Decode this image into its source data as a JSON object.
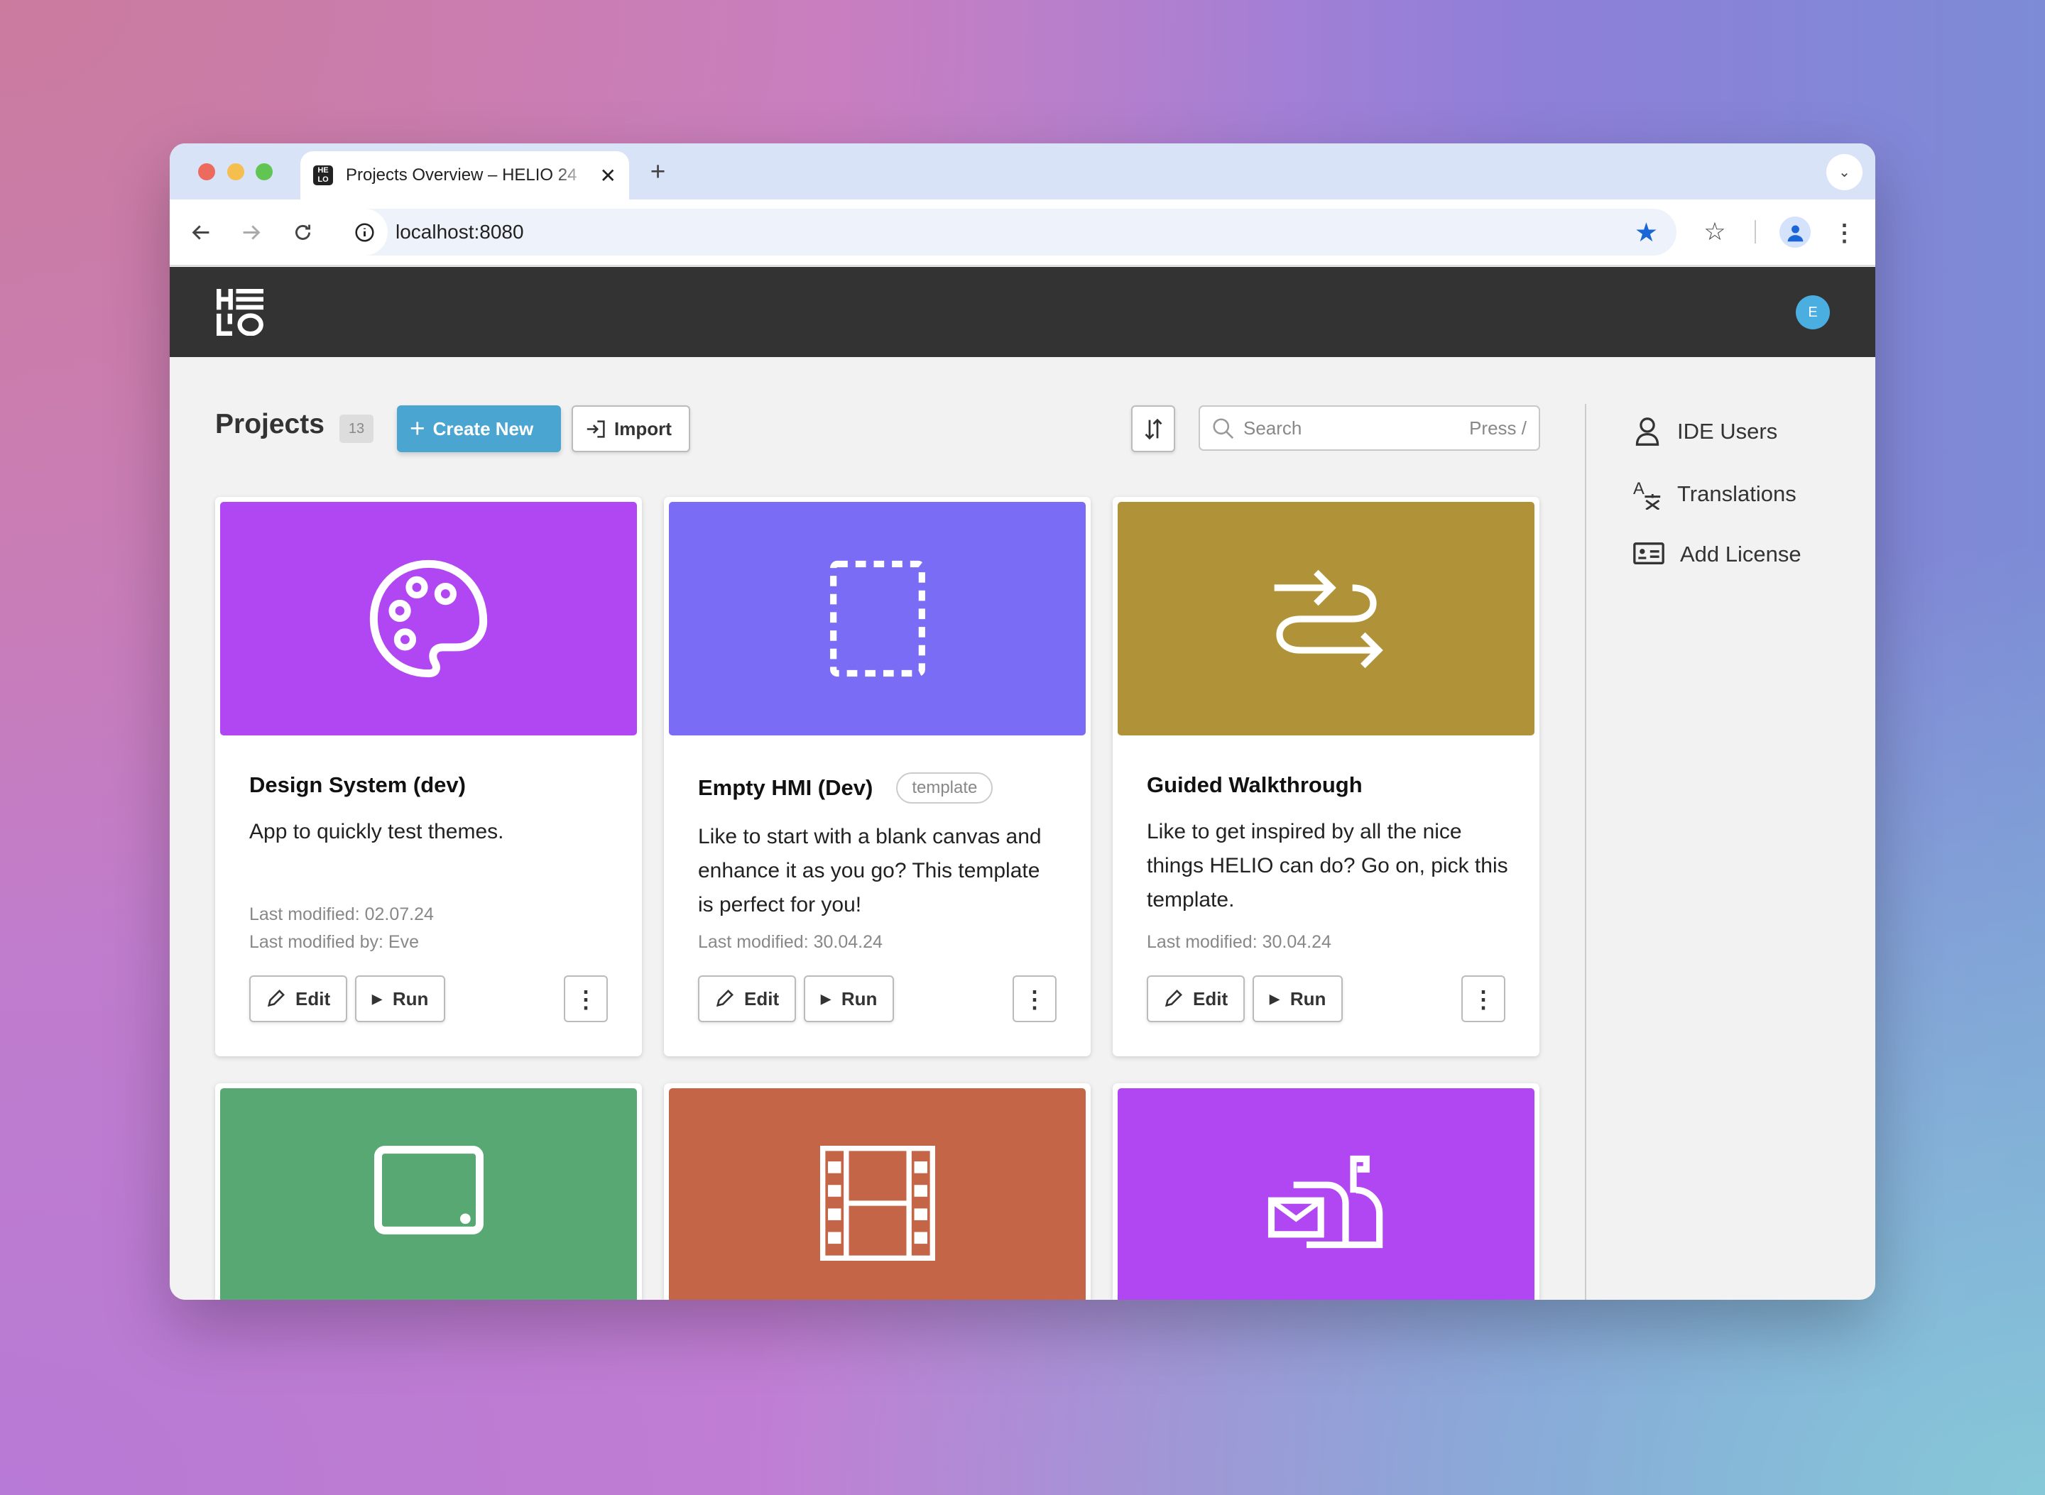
{
  "browser": {
    "tab_title": "Projects Overview – HELIO 24",
    "url": "localhost:8080"
  },
  "app": {
    "logo": "HELIO",
    "avatar_initial": "E"
  },
  "main": {
    "title": "Projects",
    "count": "13",
    "create_label": "Create New",
    "import_label": "Import",
    "search_placeholder": "Search",
    "search_hint": "Press /"
  },
  "sidebar": {
    "items": [
      {
        "label": "IDE Users",
        "icon": "user-icon"
      },
      {
        "label": "Translations",
        "icon": "translate-icon"
      },
      {
        "label": "Add License",
        "icon": "id-card-icon"
      }
    ]
  },
  "cards": [
    {
      "title": "Design System (dev)",
      "badge": "",
      "desc": "App to quickly test themes.",
      "modified": "Last modified: 02.07.24",
      "modified_by": "Last modified by: Eve",
      "color": "#b147f2",
      "icon": "palette-icon"
    },
    {
      "title": "Empty HMI (Dev)",
      "badge": "template",
      "desc": "Like to start with a blank canvas and enhance it as you go? This template is perfect for you!",
      "modified": "Last modified: 30.04.24",
      "modified_by": "",
      "color": "#7b6cf6",
      "icon": "dashed-rectangle-icon"
    },
    {
      "title": "Guided Walkthrough",
      "badge": "",
      "desc": "Like to get inspired by all the nice things HELIO can do? Go on, pick this template.",
      "modified": "Last modified: 30.04.24",
      "modified_by": "",
      "color": "#b09338",
      "icon": "route-arrows-icon"
    },
    {
      "color": "#57a872",
      "icon": "tablet-icon"
    },
    {
      "color": "#c36546",
      "icon": "film-icon"
    },
    {
      "color": "#b147f2",
      "icon": "mailbox-icon"
    }
  ],
  "card_actions": {
    "edit": "Edit",
    "run": "Run"
  }
}
